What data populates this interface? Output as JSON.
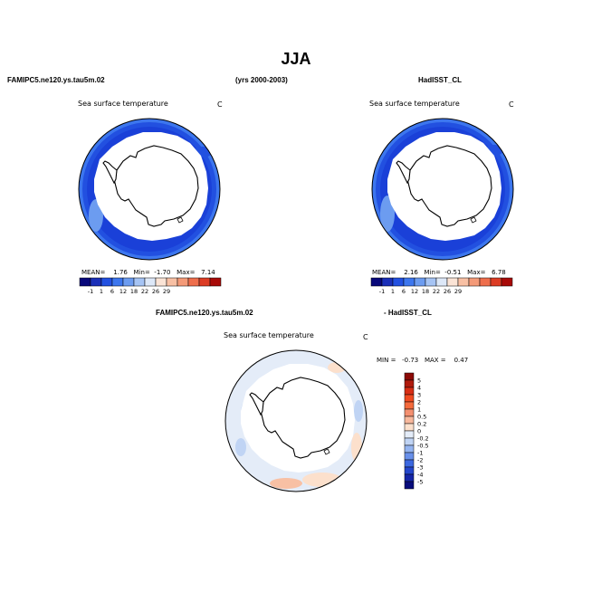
{
  "page": {
    "title": "JJA"
  },
  "headers": {
    "left_model": "FAMIPC5.ne120.ys.tau5m.02",
    "period": "(yrs 2000-2003)",
    "right_obs": "HadISST_CL",
    "diff_model": "FAMIPC5.ne120.ys.tau5m.02",
    "diff_obs": "- HadISST_CL"
  },
  "chart_data": [
    {
      "type": "heatmap",
      "subtype": "polar-stereographic contour map",
      "title": "Sea surface temperature",
      "units": "C",
      "stats": {
        "mean_label": "MEAN=",
        "mean": "1.76",
        "min_label": "Min=",
        "min": "-1.70",
        "max_label": "Max=",
        "max": "7.14"
      },
      "colorbar": {
        "labels": [
          "-1",
          "1",
          "6",
          "12",
          "18",
          "22",
          "26",
          "29"
        ],
        "colors": [
          "#08087a",
          "#1a2fb8",
          "#2250e0",
          "#3c76ee",
          "#6c9cf0",
          "#a6c4f4",
          "#dde8f8",
          "#fbe4d6",
          "#f8c0a4",
          "#f49a78",
          "#ee6e4c",
          "#dc3c24",
          "#a80a08"
        ]
      }
    },
    {
      "type": "heatmap",
      "subtype": "polar-stereographic contour map",
      "title": "Sea surface temperature",
      "units": "C",
      "stats": {
        "mean_label": "MEAN=",
        "mean": "2.16",
        "min_label": "Min=",
        "min": "-0.51",
        "max_label": "Max=",
        "max": "6.78"
      },
      "colorbar": {
        "labels": [
          "-1",
          "1",
          "6",
          "12",
          "18",
          "22",
          "26",
          "29"
        ],
        "colors": [
          "#08087a",
          "#1a2fb8",
          "#2250e0",
          "#3c76ee",
          "#6c9cf0",
          "#a6c4f4",
          "#dde8f8",
          "#fbe4d6",
          "#f8c0a4",
          "#f49a78",
          "#ee6e4c",
          "#dc3c24",
          "#a80a08"
        ]
      }
    },
    {
      "type": "heatmap",
      "subtype": "polar-stereographic difference map",
      "title": "Sea surface temperature",
      "units": "C",
      "stats": {
        "min_label": "MIN =",
        "min": "-0.73",
        "max_label": "MAX =",
        "max": "0.47"
      },
      "colorbar": {
        "labels": [
          "5",
          "4",
          "3",
          "2",
          "1",
          "0.5",
          "0.2",
          "0",
          "-0.2",
          "-0.5",
          "-1",
          "-2",
          "-3",
          "-4",
          "-5"
        ],
        "colors": [
          "#8c0a06",
          "#b01a0c",
          "#d82e14",
          "#f04a20",
          "#f46a3c",
          "#f49070",
          "#f8b89c",
          "#fce0cc",
          "#e4ecf8",
          "#c0d4f4",
          "#94b4f0",
          "#6890ea",
          "#3c68e0",
          "#2446cc",
          "#1626a8",
          "#080c7c"
        ]
      }
    }
  ]
}
